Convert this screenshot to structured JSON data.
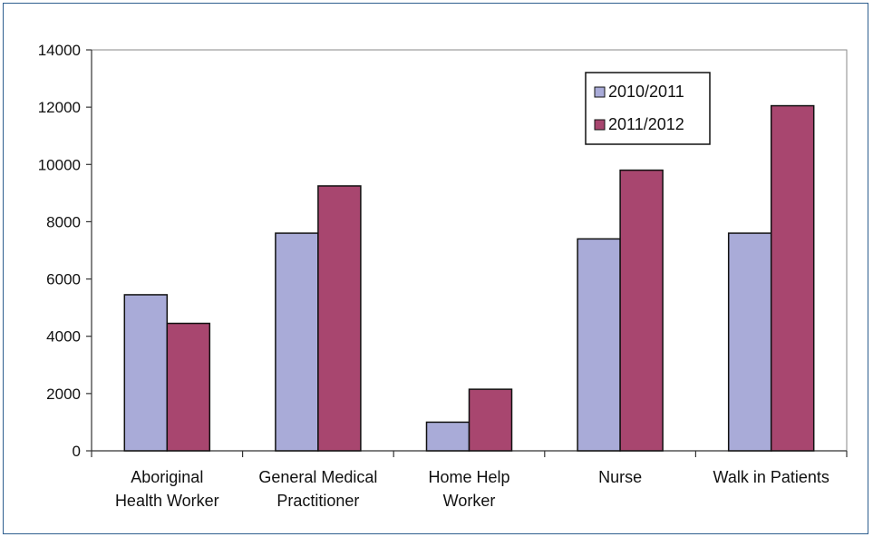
{
  "chart_data": {
    "type": "bar",
    "title": "",
    "xlabel": "",
    "ylabel": "",
    "ylim": [
      0,
      14000
    ],
    "yticks": [
      0,
      2000,
      4000,
      6000,
      8000,
      10000,
      12000,
      14000
    ],
    "grid": false,
    "legend_position": "top-right",
    "categories": [
      [
        "Aboriginal",
        "Health Worker"
      ],
      [
        "General Medical",
        "Practitioner"
      ],
      [
        "Home Help",
        "Worker"
      ],
      [
        "Nurse"
      ],
      [
        "Walk in Patients"
      ]
    ],
    "series": [
      {
        "name": "2010/2011",
        "color": "#a9abd8",
        "values": [
          5450,
          7600,
          1000,
          7400,
          7600
        ]
      },
      {
        "name": "2011/2012",
        "color": "#a8466f",
        "values": [
          4450,
          9250,
          2150,
          9800,
          12050
        ]
      }
    ]
  }
}
